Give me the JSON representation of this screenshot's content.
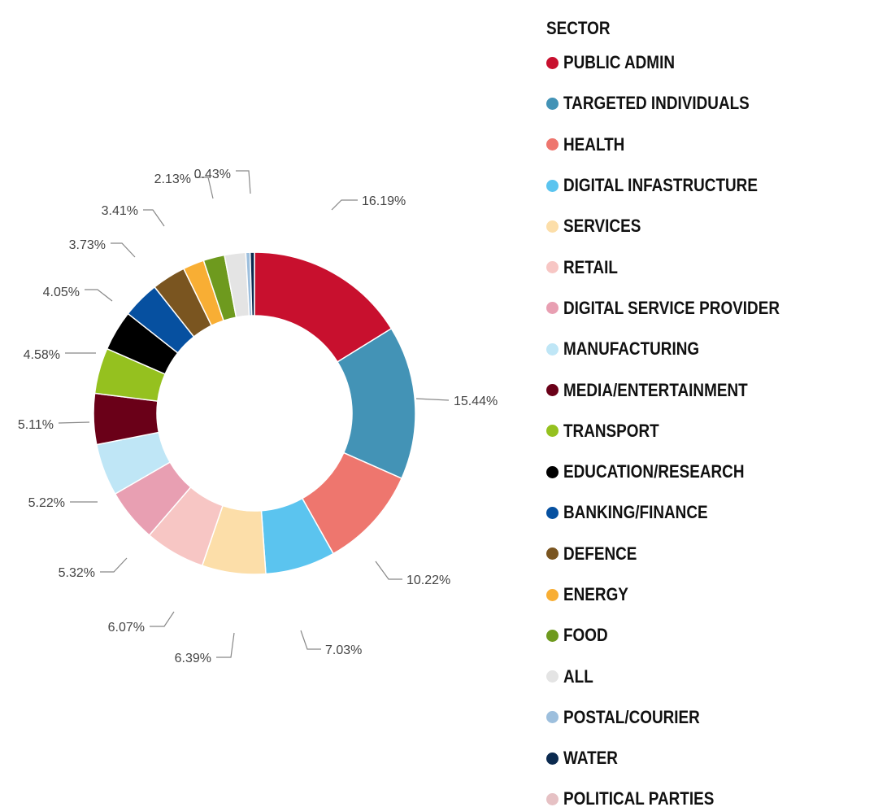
{
  "chart_data": {
    "type": "pie",
    "donut": true,
    "legend_title": "SECTOR",
    "legend_position": "right",
    "categories": [
      "PUBLIC ADMIN",
      "TARGETED INDIVIDUALS",
      "HEALTH",
      "DIGITAL INFASTRUCTURE",
      "SERVICES",
      "RETAIL",
      "DIGITAL SERVICE PROVIDER",
      "MANUFACTURING",
      "MEDIA/ENTERTAINMENT",
      "TRANSPORT",
      "EDUCATION/RESEARCH",
      "BANKING/FINANCE",
      "DEFENCE",
      "ENERGY",
      "FOOD",
      "ALL",
      "POSTAL/COURIER",
      "WATER",
      "POLITICAL PARTIES"
    ],
    "values": [
      16.19,
      15.44,
      10.22,
      7.03,
      6.39,
      6.07,
      5.32,
      5.22,
      5.11,
      4.58,
      4.05,
      3.73,
      3.41,
      2.13,
      2.13,
      2.13,
      0.43,
      0.43,
      0.0
    ],
    "value_labels": [
      "16.19%",
      "15.44%",
      "10.22%",
      "7.03%",
      "6.39%",
      "6.07%",
      "5.32%",
      "5.22%",
      "5.11%",
      "4.58%",
      "4.05%",
      "3.73%",
      "3.41%",
      "2.13%",
      "",
      "",
      "",
      "0.43%",
      ""
    ],
    "colors": [
      "#C8102E",
      "#4393B6",
      "#EE766E",
      "#5BC4EF",
      "#FCDEA9",
      "#F7C6C4",
      "#E89FB2",
      "#BFE6F6",
      "#6A0018",
      "#95C11F",
      "#000000",
      "#0650A0",
      "#7A5520",
      "#F8AE34",
      "#6E9A1E",
      "#E4E4E4",
      "#9DBFDD",
      "#0B2A4F",
      "#E6C1C4"
    ]
  }
}
